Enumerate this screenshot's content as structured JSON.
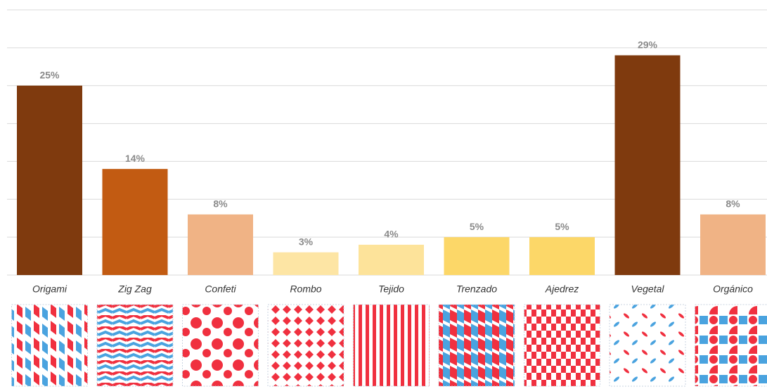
{
  "chart_data": {
    "type": "bar",
    "categories": [
      "Origami",
      "Zig Zag",
      "Confeti",
      "Rombo",
      "Tejido",
      "Trenzado",
      "Ajedrez",
      "Vegetal",
      "Orgánico"
    ],
    "values": [
      25,
      14,
      8,
      3,
      4,
      5,
      5,
      29,
      8
    ],
    "value_labels": [
      "25%",
      "14%",
      "8%",
      "3%",
      "4%",
      "5%",
      "5%",
      "29%",
      "8%"
    ],
    "colors": [
      "#7f3a0e",
      "#c25b12",
      "#f0b385",
      "#fde5a4",
      "#fde39a",
      "#fcd768",
      "#fcd768",
      "#7f3a0e",
      "#f0b385"
    ],
    "ylim": [
      0,
      35
    ],
    "yticks": [
      0,
      5,
      10,
      15,
      20,
      25,
      30,
      35
    ],
    "grid": true
  }
}
